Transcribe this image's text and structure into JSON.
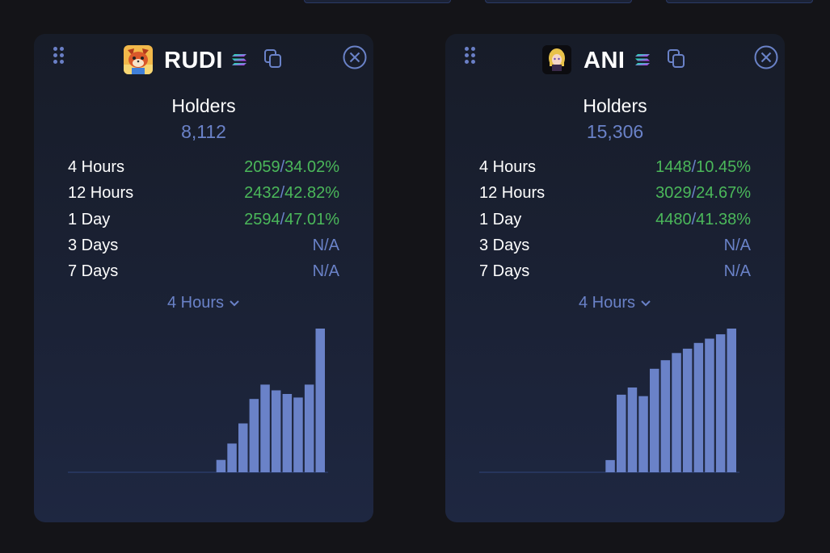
{
  "cards": [
    {
      "name": "RUDI",
      "holders_label": "Holders",
      "holders": "8,112",
      "stats": [
        {
          "label": "4 Hours",
          "count": "2059",
          "pct": "34.02%"
        },
        {
          "label": "12 Hours",
          "count": "2432",
          "pct": "42.82%"
        },
        {
          "label": "1 Day",
          "count": "2594",
          "pct": "47.01%"
        },
        {
          "label": "3 Days",
          "na": "N/A"
        },
        {
          "label": "7 Days",
          "na": "N/A"
        }
      ],
      "range": "4 Hours",
      "chart_data": {
        "type": "bar",
        "series": [
          {
            "values": [
              0,
              0,
              0,
              0,
              0,
              0,
              0,
              0,
              0,
              0,
              0,
              0,
              0,
              0,
              0.086,
              0.2,
              0.34,
              0.51,
              0.61,
              0.57,
              0.545,
              0.52,
              0.61,
              1.0
            ]
          }
        ]
      }
    },
    {
      "name": "ANI",
      "holders_label": "Holders",
      "holders": "15,306",
      "stats": [
        {
          "label": "4 Hours",
          "count": "1448",
          "pct": "10.45%"
        },
        {
          "label": "12 Hours",
          "count": "3029",
          "pct": "24.67%"
        },
        {
          "label": "1 Day",
          "count": "4480",
          "pct": "41.38%"
        },
        {
          "label": "3 Days",
          "na": "N/A"
        },
        {
          "label": "7 Days",
          "na": "N/A"
        }
      ],
      "range": "4 Hours",
      "chart_data": {
        "type": "bar",
        "series": [
          {
            "values": [
              0,
              0,
              0,
              0,
              0,
              0,
              0,
              0,
              0,
              0,
              0,
              0,
              0,
              0,
              0.085,
              0.54,
              0.59,
              0.53,
              0.72,
              0.78,
              0.83,
              0.86,
              0.9,
              0.93,
              0.96,
              1.0
            ]
          }
        ]
      }
    }
  ],
  "colors": {
    "bar": "#6a82c8",
    "baseline": "#2a3a66",
    "positive": "#4bb85a",
    "muted": "#6a82c8"
  },
  "icons": [
    "drag-handle-icon",
    "solana-icon",
    "copy-icon",
    "close-icon",
    "chevron-down-icon"
  ]
}
